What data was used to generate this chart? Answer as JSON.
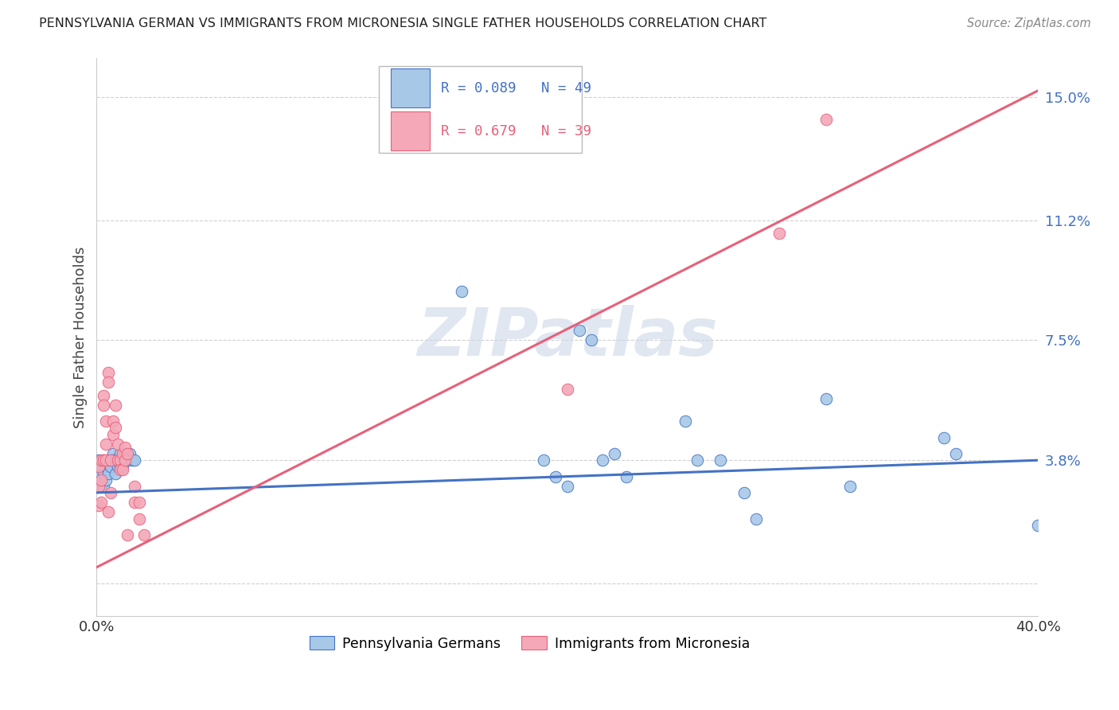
{
  "title": "PENNSYLVANIA GERMAN VS IMMIGRANTS FROM MICRONESIA SINGLE FATHER HOUSEHOLDS CORRELATION CHART",
  "source": "Source: ZipAtlas.com",
  "ylabel": "Single Father Households",
  "yticks": [
    0.0,
    0.038,
    0.075,
    0.112,
    0.15
  ],
  "ytick_labels": [
    "",
    "3.8%",
    "7.5%",
    "11.2%",
    "15.0%"
  ],
  "xlim": [
    0.0,
    0.4
  ],
  "ylim": [
    -0.01,
    0.162
  ],
  "legend_blue_label": "Pennsylvania Germans",
  "legend_pink_label": "Immigrants from Micronesia",
  "blue_color": "#a8c8e8",
  "pink_color": "#f4a8b8",
  "blue_line_color": "#4472c4",
  "pink_line_color": "#e8607a",
  "blue_line": [
    0.0,
    0.028,
    0.4,
    0.038
  ],
  "pink_line": [
    0.0,
    0.005,
    0.4,
    0.152
  ],
  "blue_points": [
    [
      0.001,
      0.038
    ],
    [
      0.001,
      0.033
    ],
    [
      0.002,
      0.036
    ],
    [
      0.002,
      0.03
    ],
    [
      0.003,
      0.038
    ],
    [
      0.003,
      0.034
    ],
    [
      0.003,
      0.03
    ],
    [
      0.004,
      0.036
    ],
    [
      0.004,
      0.032
    ],
    [
      0.005,
      0.038
    ],
    [
      0.005,
      0.034
    ],
    [
      0.005,
      0.038
    ],
    [
      0.006,
      0.036
    ],
    [
      0.006,
      0.038
    ],
    [
      0.007,
      0.04
    ],
    [
      0.007,
      0.038
    ],
    [
      0.008,
      0.038
    ],
    [
      0.008,
      0.034
    ],
    [
      0.009,
      0.038
    ],
    [
      0.009,
      0.036
    ],
    [
      0.01,
      0.04
    ],
    [
      0.01,
      0.036
    ],
    [
      0.011,
      0.038
    ],
    [
      0.011,
      0.036
    ],
    [
      0.012,
      0.038
    ],
    [
      0.012,
      0.04
    ],
    [
      0.013,
      0.038
    ],
    [
      0.014,
      0.04
    ],
    [
      0.015,
      0.038
    ],
    [
      0.016,
      0.038
    ],
    [
      0.155,
      0.09
    ],
    [
      0.19,
      0.038
    ],
    [
      0.195,
      0.033
    ],
    [
      0.2,
      0.03
    ],
    [
      0.205,
      0.078
    ],
    [
      0.21,
      0.075
    ],
    [
      0.215,
      0.038
    ],
    [
      0.22,
      0.04
    ],
    [
      0.225,
      0.033
    ],
    [
      0.25,
      0.05
    ],
    [
      0.255,
      0.038
    ],
    [
      0.265,
      0.038
    ],
    [
      0.275,
      0.028
    ],
    [
      0.28,
      0.02
    ],
    [
      0.31,
      0.057
    ],
    [
      0.32,
      0.03
    ],
    [
      0.36,
      0.045
    ],
    [
      0.365,
      0.04
    ],
    [
      0.4,
      0.018
    ]
  ],
  "pink_points": [
    [
      0.001,
      0.036
    ],
    [
      0.001,
      0.03
    ],
    [
      0.001,
      0.024
    ],
    [
      0.002,
      0.038
    ],
    [
      0.002,
      0.032
    ],
    [
      0.002,
      0.025
    ],
    [
      0.003,
      0.058
    ],
    [
      0.003,
      0.055
    ],
    [
      0.003,
      0.038
    ],
    [
      0.004,
      0.05
    ],
    [
      0.004,
      0.043
    ],
    [
      0.004,
      0.038
    ],
    [
      0.005,
      0.065
    ],
    [
      0.005,
      0.062
    ],
    [
      0.005,
      0.022
    ],
    [
      0.006,
      0.038
    ],
    [
      0.006,
      0.028
    ],
    [
      0.007,
      0.05
    ],
    [
      0.007,
      0.046
    ],
    [
      0.008,
      0.055
    ],
    [
      0.008,
      0.048
    ],
    [
      0.009,
      0.043
    ],
    [
      0.009,
      0.038
    ],
    [
      0.01,
      0.038
    ],
    [
      0.01,
      0.035
    ],
    [
      0.011,
      0.04
    ],
    [
      0.011,
      0.035
    ],
    [
      0.012,
      0.042
    ],
    [
      0.012,
      0.038
    ],
    [
      0.013,
      0.04
    ],
    [
      0.013,
      0.015
    ],
    [
      0.016,
      0.03
    ],
    [
      0.016,
      0.025
    ],
    [
      0.018,
      0.025
    ],
    [
      0.018,
      0.02
    ],
    [
      0.02,
      0.015
    ],
    [
      0.2,
      0.06
    ],
    [
      0.29,
      0.108
    ],
    [
      0.31,
      0.143
    ]
  ],
  "watermark": "ZIPatlas",
  "watermark_color": "#ccd8e8",
  "grid_color": "#d0d0d0",
  "background_color": "#ffffff"
}
